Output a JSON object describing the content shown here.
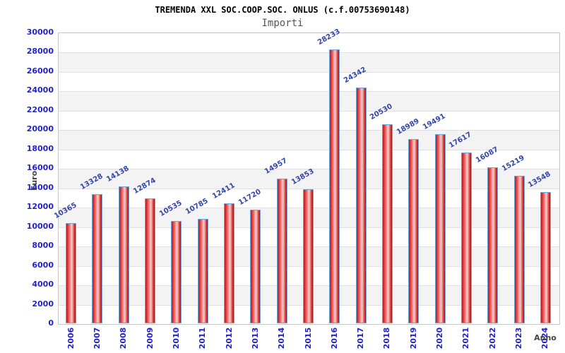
{
  "chart_data": {
    "type": "bar",
    "title": "TREMENDA XXL SOC.COOP.SOC. ONLUS (c.f.00753690148)",
    "subtitle": "Importi",
    "xlabel": "Anno",
    "ylabel": "Euro",
    "categories": [
      "2006",
      "2007",
      "2008",
      "2009",
      "2010",
      "2011",
      "2012",
      "2013",
      "2014",
      "2015",
      "2016",
      "2017",
      "2018",
      "2019",
      "2020",
      "2021",
      "2022",
      "2023",
      "2024"
    ],
    "values": [
      10365,
      13328,
      14138,
      12874,
      10535,
      10785,
      12411,
      11720,
      14957,
      13853,
      28233,
      24342,
      20530,
      18989,
      19491,
      17617,
      16087,
      15219,
      13548
    ],
    "ylim": [
      0,
      30000
    ],
    "ytick_step": 2000,
    "grid": "horizontal-bands-alternating",
    "legend": "none",
    "colors": {
      "bar_fill": "#e53935",
      "bar_border": "#6fa8dc",
      "tick_label": "#2222cc",
      "value_label": "#3344aa",
      "title": "#000000",
      "subtitle": "#555555",
      "axis_label": "#444444",
      "band_alt": "#f3f3f3",
      "gridline": "#e0e0e0",
      "plot_border": "#c6c6c6"
    }
  }
}
